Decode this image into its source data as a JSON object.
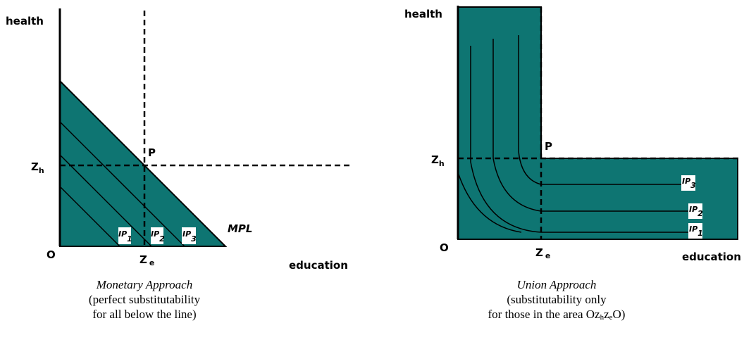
{
  "left": {
    "y_axis": "health",
    "zh": {
      "base": "Z",
      "sub": "h"
    },
    "origin": "O",
    "ze": {
      "base": "Z",
      "sub": "e"
    },
    "x_axis": "education",
    "point": "P",
    "line": "MPL",
    "curves": [
      {
        "base": "IP",
        "sub": "1"
      },
      {
        "base": "IP",
        "sub": "2"
      },
      {
        "base": "IP",
        "sub": "3"
      }
    ],
    "caption": [
      "Monetary Approach",
      "(perfect substitutability",
      "for all below the line)"
    ]
  },
  "right": {
    "y_axis": "health",
    "zh": {
      "base": "Z",
      "sub": "h"
    },
    "origin": "O",
    "ze": {
      "base": "Z",
      "sub": "e"
    },
    "x_axis": "education",
    "point": "P",
    "curves": [
      {
        "base": "IP",
        "sub": "3"
      },
      {
        "base": "IP",
        "sub": "2"
      },
      {
        "base": "IP",
        "sub": "1"
      }
    ],
    "caption": [
      "Union Approach",
      "(substitutability only",
      {
        "parts": [
          "for those in the area Oz",
          "h",
          "z",
          "e",
          "O)"
        ]
      }
    ]
  }
}
